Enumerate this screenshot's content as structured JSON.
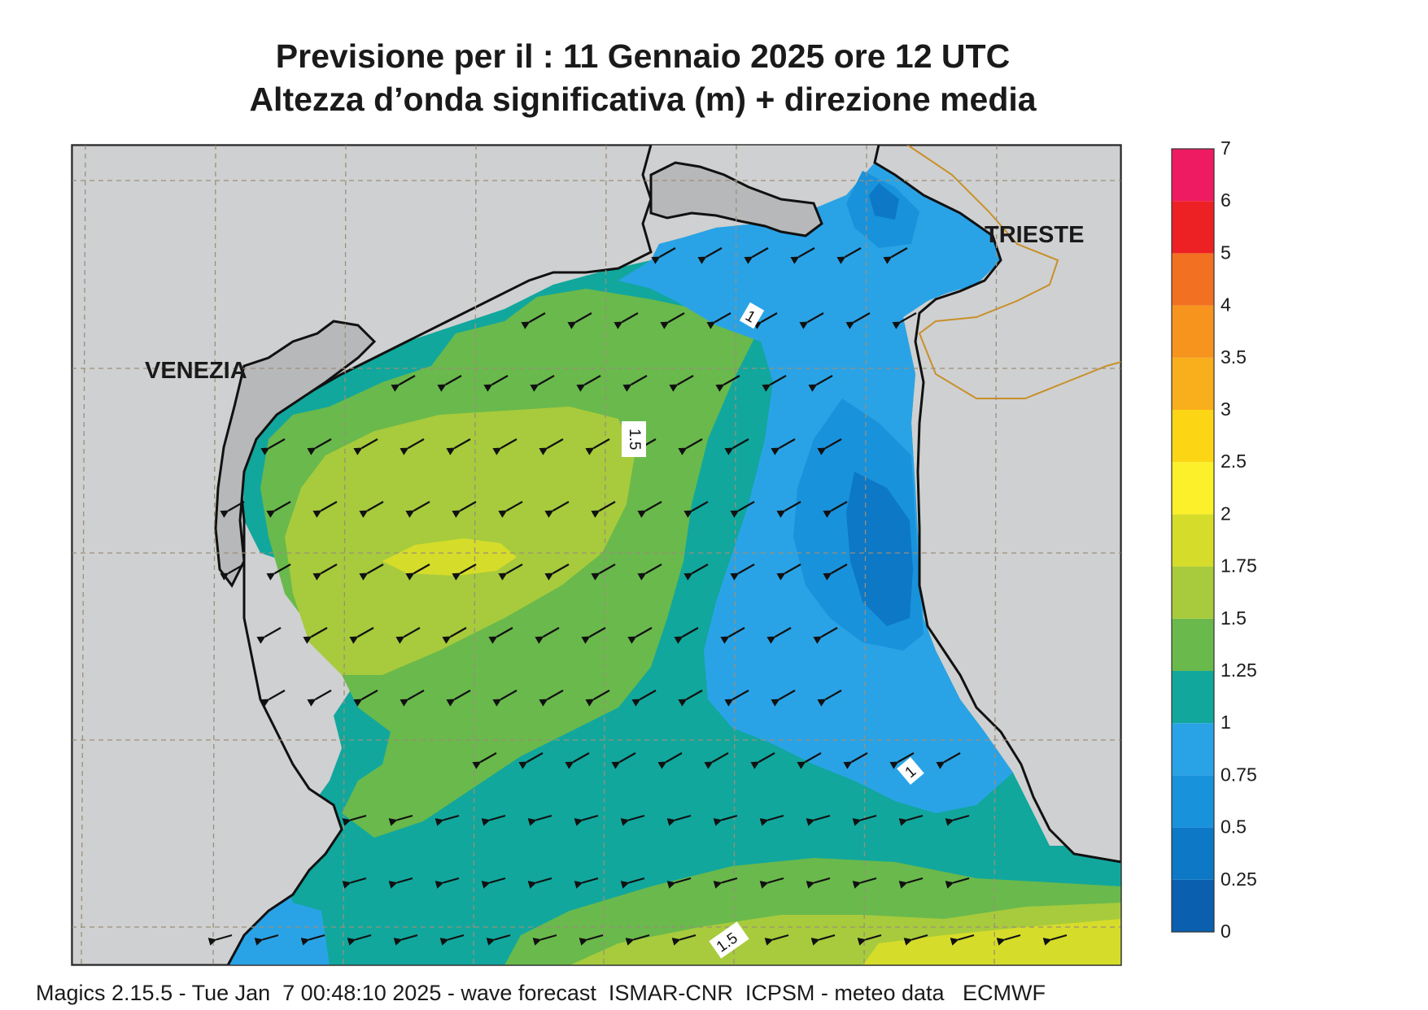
{
  "title_line1": "Previsione per il  :  11  Gennaio  2025   ore 12 UTC",
  "title_line2": "Altezza d’onda significativa (m) + direzione media",
  "footer": "Magics 2.15.5 - Tue Jan  7 00:48:10 2025 - wave forecast  ISMAR-CNR  ICPSM - meteo data   ECMWF",
  "cities": {
    "venezia": "VENEZIA",
    "trieste": "TRIESTE"
  },
  "contour_labels": {
    "north": "1",
    "center": "1.5",
    "east": "1",
    "south": "1.5"
  },
  "legend": {
    "levels": [
      "0",
      "0.25",
      "0.5",
      "0.75",
      "1",
      "1.25",
      "1.5",
      "1.75",
      "2",
      "2.5",
      "3",
      "3.5",
      "4",
      "5",
      "6",
      "7"
    ],
    "colors": [
      "#0a5fae",
      "#0c78c6",
      "#1992dc",
      "#2aa3e6",
      "#11a79d",
      "#6ab94c",
      "#a7cb3c",
      "#d6dc2a",
      "#fbf02a",
      "#fcd615",
      "#f9ae1c",
      "#f7941d",
      "#f27022",
      "#ed2024",
      "#ee1b62"
    ]
  },
  "colors": {
    "land": "#cfd0d1",
    "coast": "#111111",
    "border": "#c8902a",
    "grid": "#9b8f7a"
  }
}
